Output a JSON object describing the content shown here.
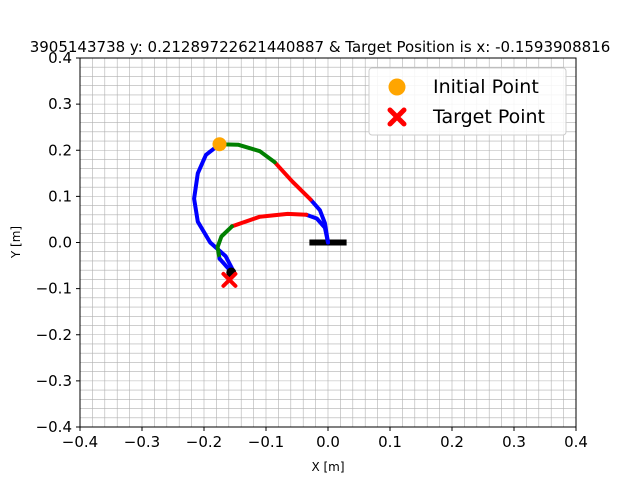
{
  "chart_data": {
    "type": "line",
    "title": "3905143738 y: 0.21289722621440887 & Target Position is x: -0.1593908816",
    "xlabel": "X [m]",
    "ylabel": "Y [m]",
    "xlim": [
      -0.4,
      0.4
    ],
    "ylim": [
      -0.4,
      0.4
    ],
    "xticks": [
      -0.4,
      -0.3,
      -0.2,
      -0.1,
      0.0,
      0.1,
      0.2,
      0.3,
      0.4
    ],
    "yticks": [
      -0.4,
      -0.3,
      -0.2,
      -0.1,
      0.0,
      0.1,
      0.2,
      0.3,
      0.4
    ],
    "xtick_labels": [
      "−0.4",
      "−0.3",
      "−0.2",
      "−0.1",
      "0.0",
      "0.1",
      "0.2",
      "0.3",
      "0.4"
    ],
    "ytick_labels": [
      "−0.4",
      "−0.3",
      "−0.2",
      "−0.1",
      "0.0",
      "0.1",
      "0.2",
      "0.3",
      "0.4"
    ],
    "grid": "major and minor",
    "minor_step": 0.02,
    "legend_position": "top-right",
    "legend": [
      {
        "label": "Initial Point",
        "marker": "circle",
        "color": "#ffa500"
      },
      {
        "label": "Target Point",
        "marker": "x",
        "color": "#ff0000"
      }
    ],
    "initial_point": {
      "x": -0.175,
      "y": 0.213,
      "color": "#ffa500"
    },
    "target_point": {
      "x": -0.159,
      "y": -0.081,
      "color": "#ff0000"
    },
    "end_marker": {
      "x": -0.156,
      "y": -0.065,
      "color": "#000000"
    },
    "base_bar": {
      "x": [
        -0.03,
        0.03
      ],
      "y": 0.0,
      "color": "#000000"
    },
    "trajectories": [
      {
        "segments": [
          {
            "color": "#0000ff",
            "points": [
              [
                0.0,
                0.0
              ],
              [
                -0.005,
                0.042
              ],
              [
                -0.013,
                0.07
              ],
              [
                -0.028,
                0.093
              ]
            ]
          },
          {
            "color": "#ff0000",
            "points": [
              [
                -0.028,
                0.093
              ],
              [
                -0.058,
                0.133
              ],
              [
                -0.086,
                0.174
              ]
            ]
          },
          {
            "color": "#008000",
            "points": [
              [
                -0.086,
                0.174
              ],
              [
                -0.11,
                0.198
              ],
              [
                -0.145,
                0.212
              ],
              [
                -0.175,
                0.213
              ]
            ]
          },
          {
            "color": "#0000ff",
            "points": [
              [
                -0.175,
                0.213
              ],
              [
                -0.197,
                0.19
              ],
              [
                -0.21,
                0.15
              ],
              [
                -0.216,
                0.095
              ],
              [
                -0.21,
                0.045
              ],
              [
                -0.19,
                0.0
              ],
              [
                -0.165,
                -0.03
              ],
              [
                -0.154,
                -0.058
              ],
              [
                -0.156,
                -0.065
              ]
            ]
          }
        ]
      },
      {
        "segments": [
          {
            "color": "#0000ff",
            "points": [
              [
                0.0,
                0.0
              ],
              [
                -0.005,
                0.032
              ],
              [
                -0.018,
                0.052
              ],
              [
                -0.035,
                0.06
              ]
            ]
          },
          {
            "color": "#ff0000",
            "points": [
              [
                -0.035,
                0.06
              ],
              [
                -0.065,
                0.062
              ],
              [
                -0.11,
                0.056
              ],
              [
                -0.155,
                0.035
              ]
            ]
          },
          {
            "color": "#008000",
            "points": [
              [
                -0.155,
                0.035
              ],
              [
                -0.172,
                0.013
              ],
              [
                -0.178,
                -0.01
              ],
              [
                -0.175,
                -0.035
              ]
            ]
          },
          {
            "color": "#0000ff",
            "points": [
              [
                -0.175,
                -0.035
              ],
              [
                -0.165,
                -0.05
              ],
              [
                -0.158,
                -0.06
              ],
              [
                -0.156,
                -0.065
              ]
            ]
          }
        ]
      }
    ]
  }
}
